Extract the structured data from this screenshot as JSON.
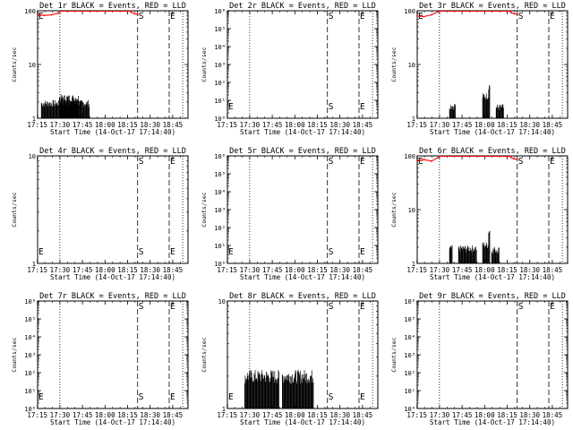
{
  "x_tick_labels": [
    "17:15",
    "17:30",
    "17:45",
    "18:00",
    "18:15",
    "18:30",
    "18:45"
  ],
  "x_label": "Start Time (14-Oct-17 17:14:40)",
  "y_label": "Counts/sec",
  "colors": {
    "events": "#000000",
    "lld": "#ff0000"
  },
  "chart_data": [
    {
      "type": "line",
      "title": "Det 1r BLACK = Events, RED = LLD",
      "xlabel": "Start Time (14-Oct-17 17:14:40)",
      "ylabel": "Counts/sec",
      "y_scale": "log",
      "ylim": [
        1,
        100
      ],
      "y_ticks": [
        {
          "v": 1,
          "label": "1"
        },
        {
          "v": 10,
          "label": "10"
        },
        {
          "v": 100,
          "label": "100"
        }
      ],
      "xlim_min": [
        0.5,
        100.5
      ],
      "vlines_dotted_min": [
        15.3,
        97.0
      ],
      "vlines_dashed": [
        {
          "min": 67.0,
          "label": "S"
        },
        {
          "min": 88.0,
          "label": "E"
        }
      ],
      "lld": [
        [
          0.5,
          85
        ],
        [
          5,
          82
        ],
        [
          10,
          84
        ],
        [
          14,
          90
        ],
        [
          15.3,
          98
        ],
        [
          62,
          98
        ],
        [
          63,
          93
        ],
        [
          65,
          88
        ],
        [
          67,
          85
        ]
      ],
      "events_bursts": [
        [
          3,
          35,
          1.9
        ],
        [
          15,
          28,
          2.4
        ]
      ]
    },
    {
      "type": "line",
      "title": "Det 2r BLACK = Events, RED = LLD",
      "xlabel": "Start Time (14-Oct-17 17:14:40)",
      "ylabel": "Counts/sec",
      "y_scale": "log",
      "ylim": [
        1,
        1000000
      ],
      "y_ticks": [
        {
          "v": 1,
          "label": "10⁰"
        },
        {
          "v": 10,
          "label": "10¹"
        },
        {
          "v": 100,
          "label": "10²"
        },
        {
          "v": 1000,
          "label": "10³"
        },
        {
          "v": 10000,
          "label": "10⁴"
        },
        {
          "v": 100000,
          "label": "10⁵"
        },
        {
          "v": 1000000,
          "label": "10⁶"
        }
      ],
      "xlim_min": [
        0.5,
        100.5
      ],
      "vlines_dotted_min": [
        15.3,
        97.0
      ],
      "vlines_dashed": [
        {
          "min": 67.0,
          "label": "S"
        },
        {
          "min": 88.0,
          "label": "E"
        }
      ],
      "lld": [],
      "events_bursts": [],
      "start_label_e": true
    },
    {
      "type": "line",
      "title": "Det 3r BLACK = Events, RED = LLD",
      "xlabel": "Start Time (14-Oct-17 17:14:40)",
      "ylabel": "Counts/sec",
      "y_scale": "log",
      "ylim": [
        1,
        100
      ],
      "y_ticks": [
        {
          "v": 1,
          "label": "1"
        },
        {
          "v": 10,
          "label": "10"
        },
        {
          "v": 100,
          "label": "100"
        }
      ],
      "xlim_min": [
        0.5,
        100.5
      ],
      "vlines_dotted_min": [
        15.3,
        97.0
      ],
      "vlines_dashed": [
        {
          "min": 67.0,
          "label": "S"
        },
        {
          "min": 88.0,
          "label": "E"
        }
      ],
      "lld": [
        [
          0.5,
          80
        ],
        [
          5,
          78
        ],
        [
          10,
          84
        ],
        [
          14,
          95
        ],
        [
          15.3,
          98
        ],
        [
          62,
          98
        ],
        [
          63,
          92
        ],
        [
          65,
          88
        ],
        [
          67,
          85
        ]
      ],
      "events_bursts": [
        [
          22,
          26,
          1.7
        ],
        [
          44,
          48,
          2.6
        ],
        [
          48,
          49,
          4
        ],
        [
          53,
          58,
          1.6
        ]
      ]
    },
    {
      "type": "line",
      "title": "Det 4r BLACK = Events, RED = LLD",
      "xlabel": "Start Time (14-Oct-17 17:14:40)",
      "ylabel": "Counts/sec",
      "y_scale": "log",
      "ylim": [
        1,
        10
      ],
      "y_ticks": [
        {
          "v": 1,
          "label": "1"
        },
        {
          "v": 10,
          "label": "10"
        }
      ],
      "xlim_min": [
        0.5,
        100.5
      ],
      "vlines_dotted_min": [
        15.3,
        97.0
      ],
      "vlines_dashed": [
        {
          "min": 67.0,
          "label": "S"
        },
        {
          "min": 88.0,
          "label": "E"
        }
      ],
      "lld": [],
      "events_bursts": [],
      "start_label_e": true
    },
    {
      "type": "line",
      "title": "Det 5r BLACK = Events, RED = LLD",
      "xlabel": "Start Time (14-Oct-17 17:14:40)",
      "ylabel": "Counts/sec",
      "y_scale": "log",
      "ylim": [
        1,
        1000000
      ],
      "y_ticks": [
        {
          "v": 1,
          "label": "10⁰"
        },
        {
          "v": 10,
          "label": "10¹"
        },
        {
          "v": 100,
          "label": "10²"
        },
        {
          "v": 1000,
          "label": "10³"
        },
        {
          "v": 10000,
          "label": "10⁴"
        },
        {
          "v": 100000,
          "label": "10⁵"
        },
        {
          "v": 1000000,
          "label": "10⁶"
        }
      ],
      "xlim_min": [
        0.5,
        100.5
      ],
      "vlines_dotted_min": [
        15.3,
        97.0
      ],
      "vlines_dashed": [
        {
          "min": 67.0,
          "label": "S"
        },
        {
          "min": 88.0,
          "label": "E"
        }
      ],
      "lld": [],
      "events_bursts": [],
      "start_label_e": true
    },
    {
      "type": "line",
      "title": "Det 6r BLACK = Events, RED = LLD",
      "xlabel": "Start Time (14-Oct-17 17:14:40)",
      "ylabel": "Counts/sec",
      "y_scale": "log",
      "ylim": [
        1,
        100
      ],
      "y_ticks": [
        {
          "v": 1,
          "label": "1"
        },
        {
          "v": 10,
          "label": "10"
        },
        {
          "v": 100,
          "label": "100"
        }
      ],
      "xlim_min": [
        0.5,
        100.5
      ],
      "vlines_dotted_min": [
        15.3,
        97.0
      ],
      "vlines_dashed": [
        {
          "min": 67.0,
          "label": "S"
        },
        {
          "min": 88.0,
          "label": "E"
        }
      ],
      "lld": [
        [
          0.5,
          82
        ],
        [
          5,
          85
        ],
        [
          10,
          80
        ],
        [
          14,
          92
        ],
        [
          15.3,
          98
        ],
        [
          62,
          98
        ],
        [
          63,
          93
        ],
        [
          65,
          88
        ],
        [
          67,
          85
        ]
      ],
      "events_bursts": [
        [
          22,
          24,
          1.9
        ],
        [
          28,
          40,
          1.9
        ],
        [
          44,
          48,
          2.2
        ],
        [
          48,
          49,
          4
        ],
        [
          50,
          55,
          1.8
        ]
      ]
    },
    {
      "type": "line",
      "title": "Det 7r BLACK = Events, RED = LLD",
      "xlabel": "Start Time (14-Oct-17 17:14:40)",
      "ylabel": "Counts/sec",
      "y_scale": "log",
      "ylim": [
        1,
        1000000
      ],
      "y_ticks": [
        {
          "v": 1,
          "label": "10⁰"
        },
        {
          "v": 10,
          "label": "10¹"
        },
        {
          "v": 100,
          "label": "10²"
        },
        {
          "v": 1000,
          "label": "10³"
        },
        {
          "v": 10000,
          "label": "10⁴"
        },
        {
          "v": 100000,
          "label": "10⁵"
        },
        {
          "v": 1000000,
          "label": "10⁶"
        }
      ],
      "xlim_min": [
        0.5,
        100.5
      ],
      "vlines_dotted_min": [
        15.3,
        97.0
      ],
      "vlines_dashed": [
        {
          "min": 67.0,
          "label": "S"
        },
        {
          "min": 88.0,
          "label": "E"
        }
      ],
      "lld": [],
      "events_bursts": [],
      "start_label_e": true
    },
    {
      "type": "line",
      "title": "Det 8r BLACK = Events, RED = LLD",
      "xlabel": "Start Time (14-Oct-17 17:14:40)",
      "ylabel": "Counts/sec",
      "y_scale": "log",
      "ylim": [
        1,
        10
      ],
      "y_ticks": [
        {
          "v": 1,
          "label": "1"
        },
        {
          "v": 10,
          "label": "10"
        }
      ],
      "xlim_min": [
        0.5,
        100.5
      ],
      "vlines_dotted_min": [
        15.3,
        97.0
      ],
      "vlines_dashed": [
        {
          "min": 67.0,
          "label": "S"
        },
        {
          "min": 88.0,
          "label": "E"
        }
      ],
      "lld": [],
      "events_bursts": [
        [
          12,
          35,
          2
        ],
        [
          37,
          58,
          2
        ]
      ],
      "start_label_e": true
    },
    {
      "type": "line",
      "title": "Det 9r BLACK = Events, RED = LLD",
      "xlabel": "Start Time (14-Oct-17 17:14:40)",
      "ylabel": "Counts/sec",
      "y_scale": "log",
      "ylim": [
        1,
        1000000
      ],
      "y_ticks": [
        {
          "v": 1,
          "label": "10⁰"
        },
        {
          "v": 10,
          "label": "10¹"
        },
        {
          "v": 100,
          "label": "10²"
        },
        {
          "v": 1000,
          "label": "10³"
        },
        {
          "v": 10000,
          "label": "10⁴"
        },
        {
          "v": 100000,
          "label": "10⁵"
        },
        {
          "v": 1000000,
          "label": "10⁶"
        }
      ],
      "xlim_min": [
        0.5,
        100.5
      ],
      "vlines_dotted_min": [
        15.3,
        97.0
      ],
      "vlines_dashed": [
        {
          "min": 67.0,
          "label": "S"
        },
        {
          "min": 88.0,
          "label": "E"
        }
      ],
      "lld": [],
      "events_bursts": []
    }
  ]
}
